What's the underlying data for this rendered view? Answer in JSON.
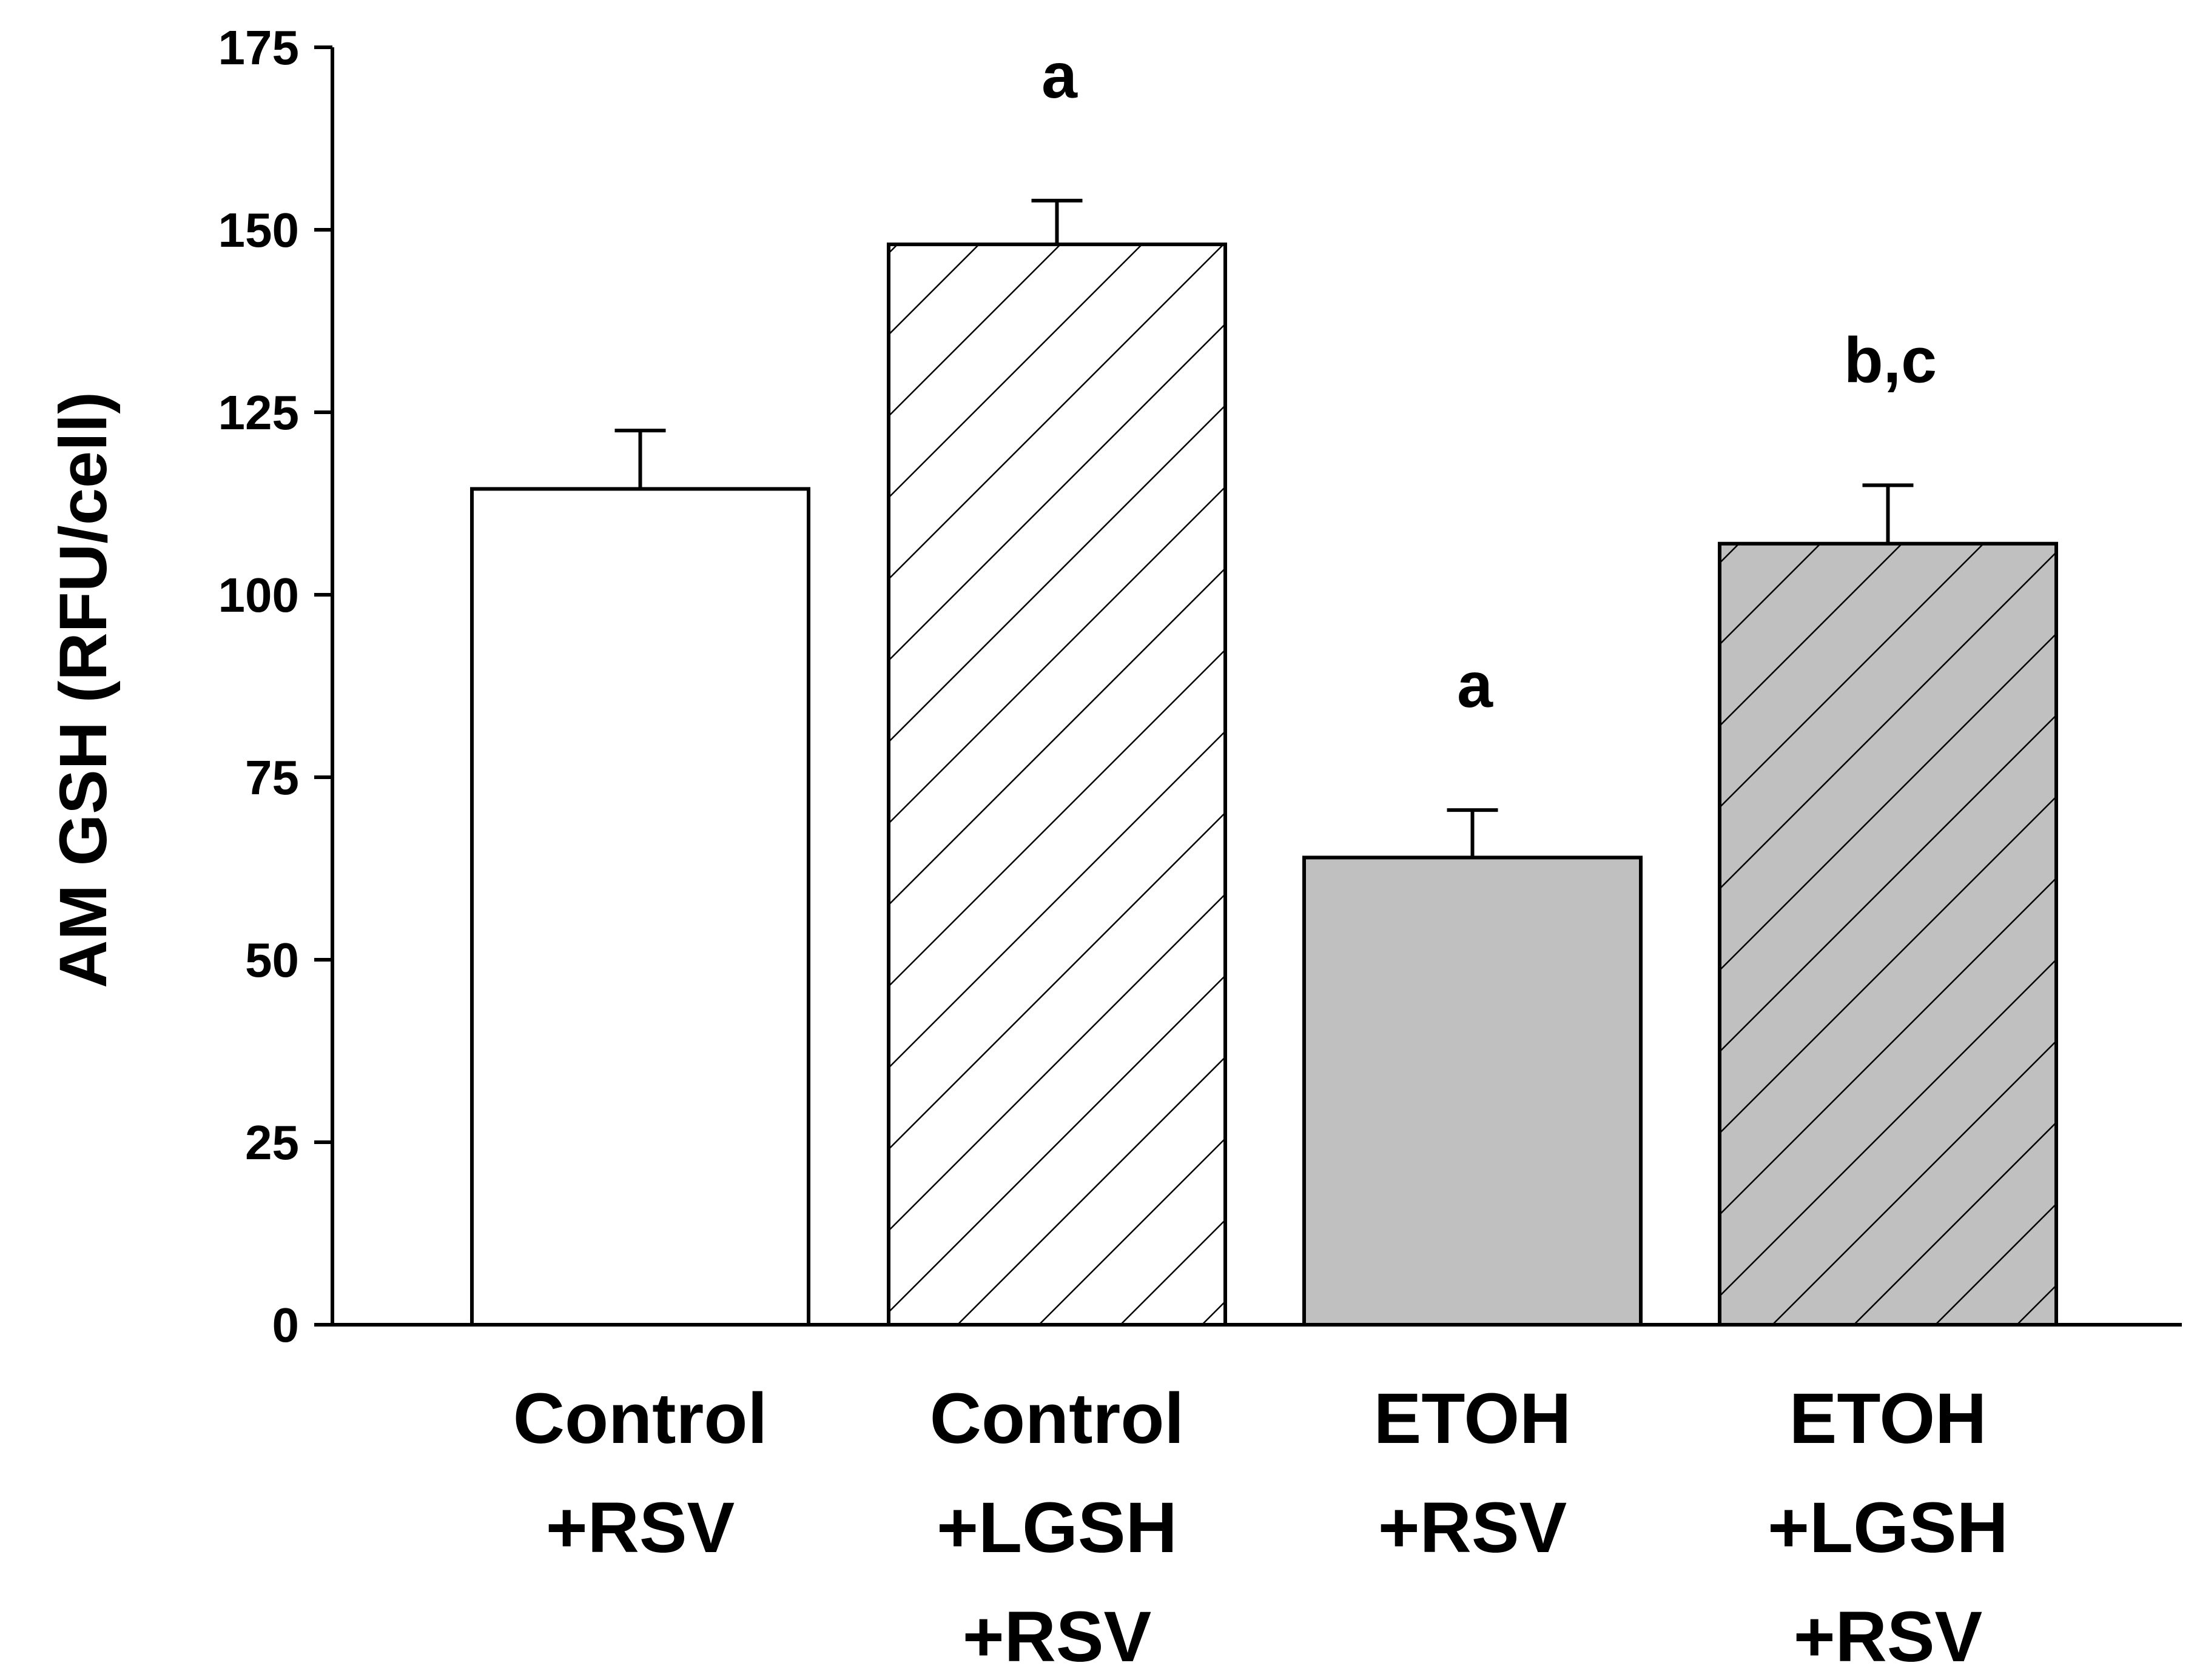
{
  "chart_data": {
    "type": "bar",
    "title": "",
    "xlabel": "",
    "ylabel": "AM GSH (RFU/cell)",
    "ylim": [
      0,
      175
    ],
    "yticks": [
      0,
      25,
      50,
      75,
      100,
      125,
      150,
      175
    ],
    "ytick_labels": [
      "0",
      "25",
      "50",
      "75",
      "100",
      "125",
      "150",
      "175"
    ],
    "grid": false,
    "categories": [
      [
        "Control",
        "+RSV"
      ],
      [
        "Control",
        "+LGSH",
        "+RSV"
      ],
      [
        "ETOH",
        "+RSV"
      ],
      [
        "ETOH",
        "+LGSH",
        "+RSV"
      ]
    ],
    "values": [
      114.5,
      148,
      64,
      107
    ],
    "errors": [
      8,
      6,
      6.5,
      8
    ],
    "significance": [
      "",
      "a",
      "a",
      "b,c"
    ],
    "fill_colors": [
      "#ffffff",
      "#ffffff",
      "#c0c0c0",
      "#c0c0c0"
    ],
    "hatched": [
      false,
      true,
      false,
      true
    ],
    "stroke_color": "#000000"
  }
}
